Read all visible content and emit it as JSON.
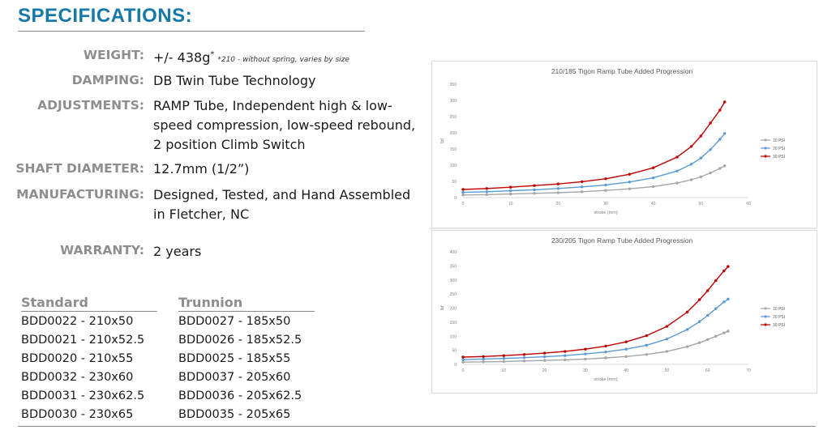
{
  "heading": "SPECIFICATIONS:",
  "specs": [
    {
      "label": "WEIGHT:",
      "value": "+/- 438g",
      "sup": "*",
      "note": "*210 - without spring, varies by size"
    },
    {
      "label": "DAMPING:",
      "value": "DB Twin Tube Technology"
    },
    {
      "label": "ADJUSTMENTS:",
      "lines": [
        "RAMP Tube, Independent high & low-",
        "speed compression, low-speed rebound,",
        "2 position Climb Switch"
      ]
    },
    {
      "label": "SHAFT DIAMETER:",
      "value": "12.7mm (1/2”)"
    },
    {
      "label": "MANUFACTURING:",
      "lines": [
        "Designed, Tested, and Hand Assembled",
        "in Fletcher, NC"
      ]
    },
    {
      "label": "WARRANTY:",
      "value": "2 years"
    }
  ],
  "parts": {
    "standard_header": "Standard",
    "trunnion_header": "Trunnion",
    "standard": [
      "BDD0022 - 210x50",
      "BDD0021 - 210x52.5",
      "BDD0020 - 210x55",
      "BDD0032 - 230x60",
      "BDD0031 - 230x62.5",
      "BDD0030 - 230x65"
    ],
    "trunnion": [
      "BDD0027 - 185x50",
      "BDD0026 - 185x52.5",
      "BDD0025 - 185x55",
      "BDD0037 - 205x60",
      "BDD0036 - 205x62.5",
      "BDD0035 - 205x65"
    ]
  },
  "colors": {
    "heading": "#1478a8",
    "label": "#8e8e8e",
    "series_10": "#a6a6a6",
    "series_20": "#5b9bd5",
    "series_30": "#c00000"
  },
  "chart_data": [
    {
      "type": "line",
      "title": "210/185 Tigon Ramp Tube Added Progression",
      "xlabel": "stroke (mm)",
      "ylabel": "lbf",
      "xlim": [
        0,
        60
      ],
      "ylim": [
        0,
        350
      ],
      "xticks": [
        0,
        10,
        20,
        30,
        40,
        50,
        60
      ],
      "yticks": [
        0,
        50,
        100,
        150,
        200,
        250,
        300,
        350
      ],
      "grid": false,
      "legend": "right",
      "x": [
        0,
        5,
        10,
        15,
        20,
        25,
        30,
        35,
        40,
        45,
        48,
        50,
        52,
        54,
        55
      ],
      "series": [
        {
          "name": "10 PSI",
          "color": "#a6a6a6",
          "values": [
            8,
            9,
            11,
            13,
            15,
            18,
            22,
            27,
            34,
            45,
            55,
            64,
            76,
            90,
            98
          ]
        },
        {
          "name": "20 PSI",
          "color": "#5b9bd5",
          "values": [
            16,
            18,
            21,
            24,
            28,
            33,
            39,
            48,
            61,
            82,
            103,
            122,
            148,
            180,
            198
          ]
        },
        {
          "name": "30 PSI",
          "color": "#c00000",
          "values": [
            25,
            28,
            32,
            37,
            42,
            49,
            58,
            72,
            92,
            125,
            158,
            190,
            230,
            270,
            295
          ]
        }
      ]
    },
    {
      "type": "line",
      "title": "230/205 Tigon Ramp Tube Added Progression",
      "xlabel": "stroke (mm)",
      "ylabel": "lbf",
      "xlim": [
        0,
        70
      ],
      "ylim": [
        0,
        400
      ],
      "xticks": [
        0,
        10,
        20,
        30,
        40,
        50,
        60,
        70
      ],
      "yticks": [
        0,
        50,
        100,
        150,
        200,
        250,
        300,
        350,
        400
      ],
      "grid": false,
      "legend": "right",
      "x": [
        0,
        5,
        10,
        15,
        20,
        25,
        30,
        35,
        40,
        45,
        50,
        55,
        58,
        60,
        62,
        64,
        65
      ],
      "series": [
        {
          "name": "10 PSI",
          "color": "#a6a6a6",
          "values": [
            8,
            9,
            10,
            12,
            14,
            16,
            19,
            23,
            28,
            35,
            46,
            63,
            77,
            88,
            100,
            112,
            118
          ]
        },
        {
          "name": "20 PSI",
          "color": "#5b9bd5",
          "values": [
            17,
            19,
            21,
            24,
            27,
            31,
            37,
            44,
            54,
            68,
            90,
            124,
            152,
            174,
            198,
            222,
            232
          ]
        },
        {
          "name": "30 PSI",
          "color": "#c00000",
          "values": [
            26,
            28,
            31,
            35,
            40,
            46,
            54,
            65,
            80,
            102,
            135,
            186,
            230,
            262,
            298,
            332,
            348
          ]
        }
      ]
    }
  ]
}
